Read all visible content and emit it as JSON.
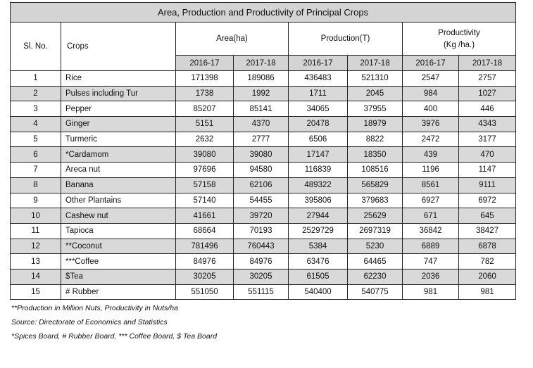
{
  "title": "Area, Production and Productivity of Principal Crops",
  "headers": {
    "sl_no": "Sl. No.",
    "crops": "Crops",
    "area": "Area(ha)",
    "production": "Production(T)",
    "productivity_line1": "Productivity",
    "productivity_line2": "(Kg /ha.)",
    "years": [
      "2016-17",
      "2017-18",
      "2016-17",
      "2017-18",
      "2016-17",
      "2017-18"
    ]
  },
  "rows": [
    {
      "sl": "1",
      "crop": "Rice",
      "vals": [
        "171398",
        "189086",
        "436483",
        "521310",
        "2547",
        "2757"
      ]
    },
    {
      "sl": "2",
      "crop": "Pulses including Tur",
      "vals": [
        "1738",
        "1992",
        "1711",
        "2045",
        "984",
        "1027"
      ]
    },
    {
      "sl": "3",
      "crop": "Pepper",
      "vals": [
        "85207",
        "85141",
        "34065",
        "37955",
        "400",
        "446"
      ]
    },
    {
      "sl": "4",
      "crop": "Ginger",
      "vals": [
        "5151",
        "4370",
        "20478",
        "18979",
        "3976",
        "4343"
      ]
    },
    {
      "sl": "5",
      "crop": "Turmeric",
      "vals": [
        "2632",
        "2777",
        "6506",
        "8822",
        "2472",
        "3177"
      ]
    },
    {
      "sl": "6",
      "crop": "*Cardamom",
      "vals": [
        "39080",
        "39080",
        "17147",
        "18350",
        "439",
        "470"
      ]
    },
    {
      "sl": "7",
      "crop": "Areca nut",
      "vals": [
        "97696",
        "94580",
        "116839",
        "108516",
        "1196",
        "1147"
      ]
    },
    {
      "sl": "8",
      "crop": "Banana",
      "vals": [
        "57158",
        "62106",
        "489322",
        "565829",
        "8561",
        "9111"
      ]
    },
    {
      "sl": "9",
      "crop": "Other Plantains",
      "vals": [
        "57140",
        "54455",
        "395806",
        "379683",
        "6927",
        "6972"
      ]
    },
    {
      "sl": "10",
      "crop": "Cashew nut",
      "vals": [
        "41661",
        "39720",
        "27944",
        "25629",
        "671",
        "645"
      ]
    },
    {
      "sl": "11",
      "crop": "Tapioca",
      "vals": [
        "68664",
        "70193",
        "2529729",
        "2697319",
        "36842",
        "38427"
      ]
    },
    {
      "sl": "12",
      "crop": "**Coconut",
      "vals": [
        "781496",
        "760443",
        "5384",
        "5230",
        "6889",
        "6878"
      ]
    },
    {
      "sl": "13",
      "crop": "***Coffee",
      "vals": [
        "84976",
        "84976",
        "63476",
        "64465",
        "747",
        "782"
      ]
    },
    {
      "sl": "14",
      "crop": "$Tea",
      "vals": [
        "30205",
        "30205",
        "61505",
        "62230",
        "2036",
        "2060"
      ]
    },
    {
      "sl": "15",
      "crop": "# Rubber",
      "vals": [
        "551050",
        "551115",
        "540400",
        "540775",
        "981",
        "981"
      ]
    }
  ],
  "notes": [
    "**Production in Million Nuts, Productivity in Nuts/ha",
    "Source:  Directorate of Economics and Statistics",
    "*Spices Board, # Rubber Board, *** Coffee Board, $ Tea Board"
  ]
}
